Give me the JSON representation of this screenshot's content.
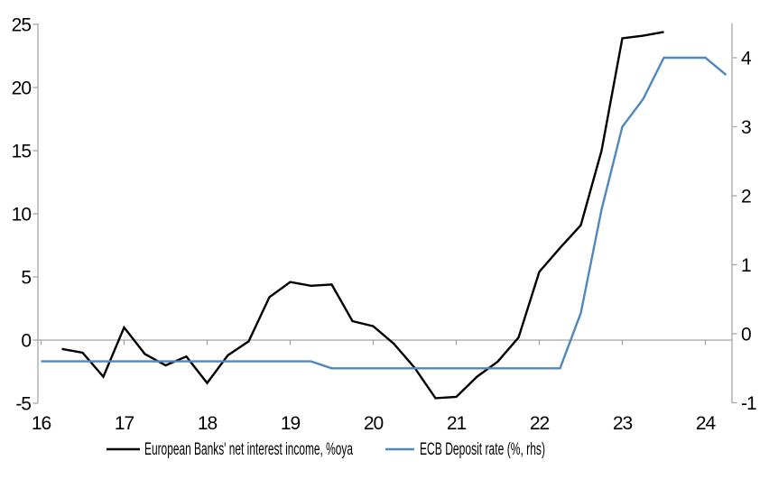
{
  "chart_data": {
    "type": "line",
    "title": "",
    "x_axis": {
      "ticks": [
        16,
        17,
        18,
        19,
        20,
        21,
        22,
        23,
        24
      ],
      "min": 16,
      "max": 24.35,
      "grid": false
    },
    "left_axis": {
      "ticks": [
        25,
        20,
        15,
        10,
        5,
        0,
        -5
      ],
      "min": -5,
      "max": 25,
      "grid": false,
      "zero_gridline": true
    },
    "right_axis": {
      "ticks": [
        4,
        3,
        2,
        1,
        0,
        -1
      ],
      "min": -1.1,
      "max": 4.5,
      "grid": false
    },
    "legend_position": "bottom",
    "series": [
      {
        "name": "European Banks' net interest income, %oya",
        "axis": "left",
        "color": "#000000",
        "x": [
          16.25,
          16.5,
          16.75,
          17.0,
          17.25,
          17.5,
          17.75,
          18.0,
          18.25,
          18.5,
          18.75,
          19.0,
          19.25,
          19.5,
          19.75,
          20.0,
          20.25,
          20.5,
          20.75,
          21.0,
          21.25,
          21.5,
          21.75,
          22.0,
          22.25,
          22.5,
          22.75,
          23.0,
          23.25,
          23.5
        ],
        "values": [
          -0.7,
          -1.0,
          -2.9,
          1.0,
          -1.1,
          -2.0,
          -1.3,
          -3.4,
          -1.2,
          -0.1,
          3.4,
          4.6,
          4.3,
          4.4,
          1.5,
          1.1,
          -0.3,
          -2.2,
          -4.6,
          -4.5,
          -2.9,
          -1.7,
          0.2,
          5.4,
          7.3,
          9.1,
          15.0,
          23.9,
          24.1,
          24.4
        ]
      },
      {
        "name": "ECB Deposit rate (%, rhs)",
        "axis": "right",
        "color": "#4f87be",
        "x": [
          16.0,
          16.25,
          16.5,
          16.75,
          17.0,
          17.25,
          17.5,
          17.75,
          18.0,
          18.25,
          18.5,
          18.75,
          19.0,
          19.25,
          19.5,
          19.75,
          20.0,
          20.25,
          20.5,
          20.75,
          21.0,
          21.25,
          21.5,
          21.75,
          22.0,
          22.25,
          22.5,
          22.75,
          23.0,
          23.25,
          23.5,
          23.75,
          24.0,
          24.25
        ],
        "values": [
          -0.4,
          -0.4,
          -0.4,
          -0.4,
          -0.4,
          -0.4,
          -0.4,
          -0.4,
          -0.4,
          -0.4,
          -0.4,
          -0.4,
          -0.4,
          -0.4,
          -0.5,
          -0.5,
          -0.5,
          -0.5,
          -0.5,
          -0.5,
          -0.5,
          -0.5,
          -0.5,
          -0.5,
          -0.5,
          -0.5,
          0.3,
          1.8,
          3.0,
          3.4,
          4.0,
          4.0,
          4.0,
          3.75
        ]
      }
    ]
  },
  "legend": {
    "series1_label": "European Banks' net interest income, %oya",
    "series2_label": "ECB Deposit rate (%, rhs)"
  },
  "colors": {
    "series1": "#000000",
    "series2": "#4f87be",
    "axis": "#a6a6a6",
    "text": "#000000"
  }
}
